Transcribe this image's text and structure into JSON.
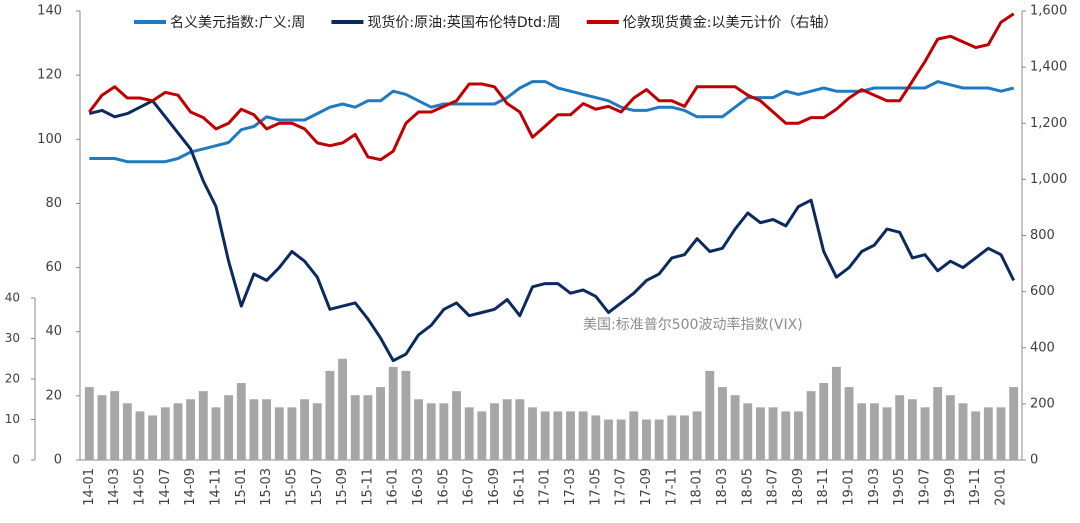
{
  "chart_data": {
    "type": "line",
    "categories": [
      "14-01",
      null,
      "14-03",
      null,
      "14-05",
      null,
      "14-07",
      null,
      "14-09",
      null,
      "14-11",
      null,
      "15-01",
      null,
      "15-03",
      null,
      "15-05",
      null,
      "15-07",
      null,
      "15-09",
      null,
      "15-11",
      null,
      "16-01",
      null,
      "16-03",
      null,
      "16-05",
      null,
      "16-07",
      null,
      "16-09",
      null,
      "16-11",
      null,
      "17-01",
      null,
      "17-03",
      null,
      "17-05",
      null,
      "17-07",
      null,
      "17-09",
      null,
      "17-11",
      null,
      "18-01",
      null,
      "18-03",
      null,
      "18-05",
      null,
      "18-07",
      null,
      "18-09",
      null,
      "18-11",
      null,
      "19-01",
      null,
      "19-03",
      null,
      "19-05",
      null,
      "19-07",
      null,
      "19-09",
      null,
      "19-11",
      null,
      "20-01",
      null
    ],
    "series": [
      {
        "name": "名义美元指数:广义:周",
        "color": "#1f7bc1",
        "axis": "y",
        "values": [
          94,
          94,
          94,
          93,
          93,
          93,
          93,
          94,
          96,
          97,
          98,
          99,
          103,
          104,
          107,
          106,
          106,
          106,
          108,
          110,
          111,
          110,
          112,
          112,
          115,
          114,
          112,
          110,
          111,
          111,
          111,
          111,
          111,
          113,
          116,
          118,
          118,
          116,
          115,
          114,
          113,
          112,
          110,
          109,
          109,
          110,
          110,
          109,
          107,
          107,
          107,
          110,
          113,
          113,
          113,
          115,
          114,
          115,
          116,
          115,
          115,
          115,
          116,
          116,
          116,
          116,
          116,
          118,
          117,
          116,
          116,
          116,
          115,
          116
        ]
      },
      {
        "name": "现货价:原油:英国布伦特Dtd:周",
        "color": "#0c2a5e",
        "axis": "y",
        "values": [
          108,
          109,
          107,
          108,
          110,
          112,
          107,
          102,
          97,
          87,
          79,
          62,
          48,
          58,
          56,
          60,
          65,
          62,
          57,
          47,
          48,
          49,
          44,
          38,
          31,
          33,
          39,
          42,
          47,
          49,
          45,
          46,
          47,
          50,
          45,
          54,
          55,
          55,
          52,
          53,
          51,
          46,
          49,
          52,
          56,
          58,
          63,
          64,
          69,
          65,
          66,
          72,
          77,
          74,
          75,
          73,
          79,
          81,
          65,
          57,
          60,
          65,
          67,
          72,
          71,
          63,
          64,
          59,
          62,
          60,
          63,
          66,
          64,
          56
        ]
      },
      {
        "name": "伦敦现货黄金:以美元计价（右轴）",
        "color": "#c00000",
        "axis": "y2",
        "values": [
          1240,
          1300,
          1330,
          1290,
          1290,
          1280,
          1310,
          1300,
          1240,
          1220,
          1180,
          1200,
          1250,
          1230,
          1180,
          1200,
          1200,
          1180,
          1130,
          1120,
          1130,
          1160,
          1080,
          1070,
          1100,
          1200,
          1240,
          1240,
          1260,
          1280,
          1340,
          1340,
          1330,
          1270,
          1240,
          1150,
          1190,
          1230,
          1230,
          1270,
          1250,
          1260,
          1240,
          1290,
          1320,
          1280,
          1280,
          1260,
          1330,
          1330,
          1330,
          1330,
          1300,
          1280,
          1240,
          1200,
          1200,
          1220,
          1220,
          1250,
          1290,
          1320,
          1300,
          1280,
          1280,
          1350,
          1420,
          1500,
          1510,
          1490,
          1470,
          1480,
          1560,
          1590
        ]
      },
      {
        "name": "美国:标准普尔500波动率指数(VIX)",
        "color": "#a6a6a6",
        "axis": "y3",
        "type": "bar",
        "values": [
          18,
          16,
          17,
          14,
          12,
          11,
          13,
          14,
          15,
          17,
          13,
          16,
          19,
          15,
          15,
          13,
          13,
          15,
          14,
          22,
          25,
          16,
          16,
          18,
          23,
          22,
          15,
          14,
          14,
          17,
          13,
          12,
          14,
          15,
          15,
          13,
          12,
          12,
          12,
          12,
          11,
          10,
          10,
          12,
          10,
          10,
          11,
          11,
          12,
          22,
          18,
          16,
          14,
          13,
          13,
          12,
          12,
          17,
          19,
          23,
          18,
          14,
          14,
          13,
          16,
          15,
          13,
          18,
          16,
          14,
          12,
          13,
          13,
          18
        ]
      }
    ],
    "ylim": [
      0,
      140
    ],
    "yticks": [
      0,
      20,
      40,
      60,
      80,
      100,
      120,
      140
    ],
    "y2lim": [
      0,
      1600
    ],
    "y2ticks": [
      0,
      200,
      400,
      600,
      800,
      {
        "value": 1000,
        "label": "1,000"
      },
      {
        "value": 1200,
        "label": "1,200"
      },
      {
        "value": 1400,
        "label": "1,400"
      },
      {
        "value": 1600,
        "label": "1,600"
      }
    ],
    "y3lim": [
      0,
      40
    ],
    "y3ticks": [
      0,
      10,
      20,
      30,
      40
    ],
    "legend": "top"
  }
}
